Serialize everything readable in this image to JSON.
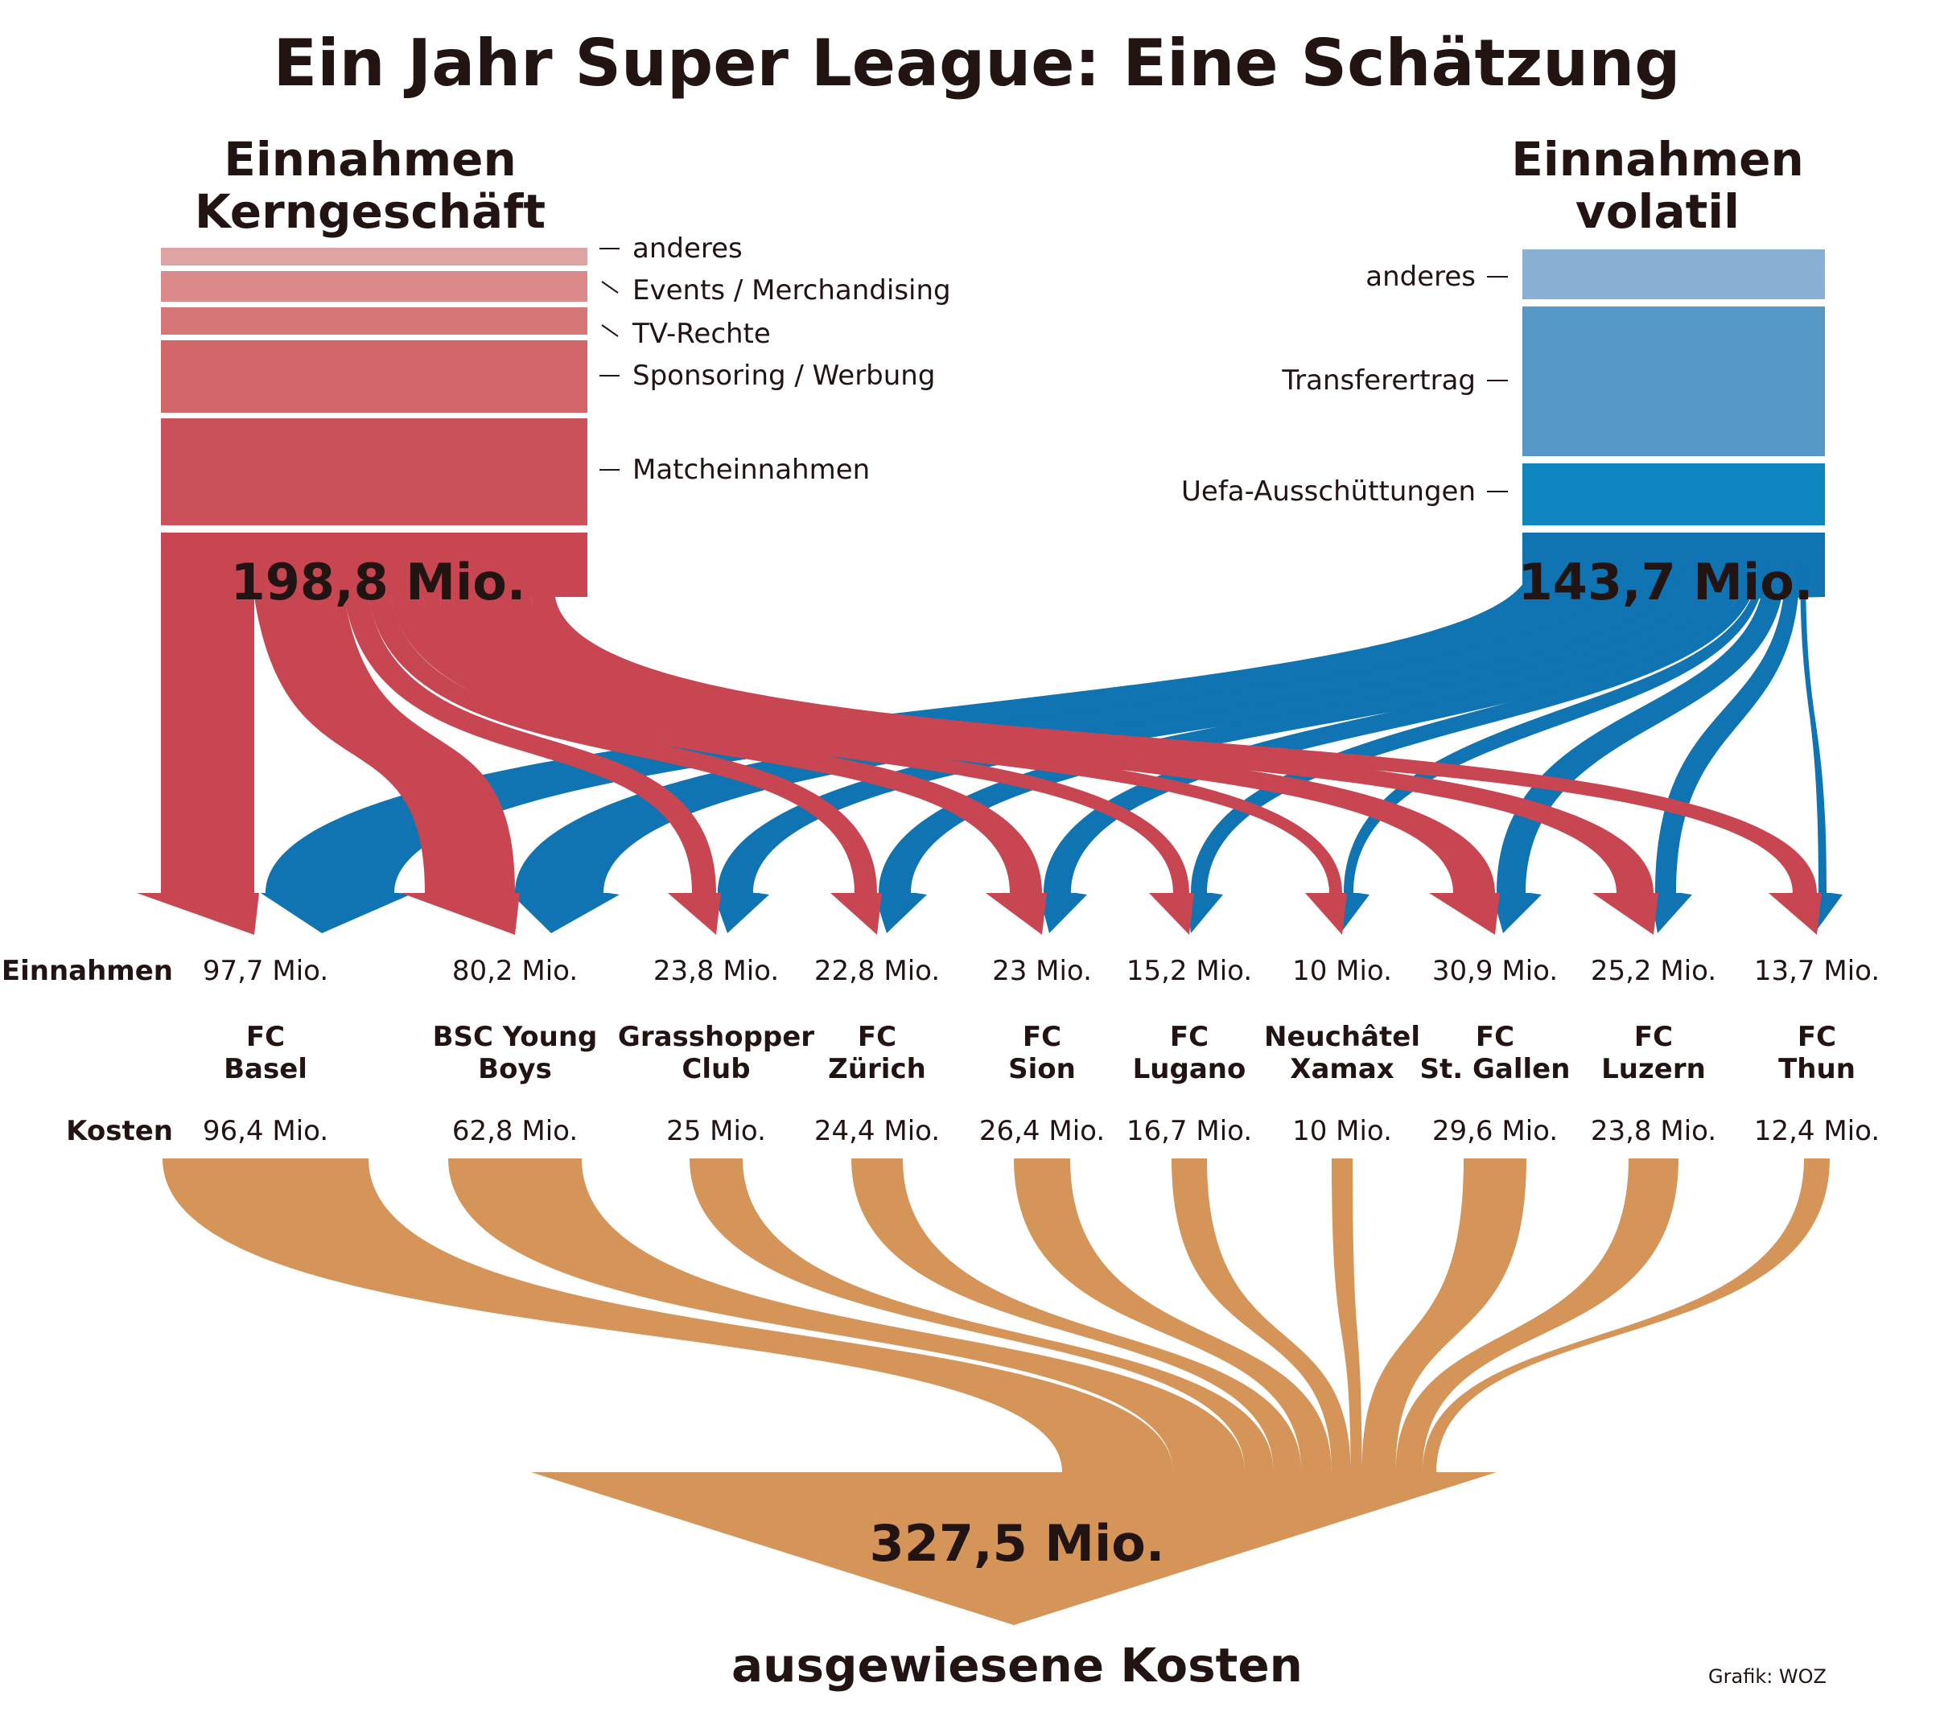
{
  "title": "Ein Jahr Super League: Eine Schätzung",
  "colors": {
    "core": "#c84651",
    "volatile": "#0f74b1",
    "costs": "#d59458",
    "text": "#231414"
  },
  "core_revenue": {
    "heading_line1": "Einnahmen",
    "heading_line2": "Kerngeschäft",
    "total": "198,8 Mio.",
    "categories": [
      {
        "label": "anderes",
        "color": "#dfa3a3"
      },
      {
        "label": "Events / Merchandising",
        "color": "#da8a8a"
      },
      {
        "label": "TV-Rechte",
        "color": "#d67676"
      },
      {
        "label": "Sponsoring / Werbung",
        "color": "#d26668"
      },
      {
        "label": "Matcheinnahmen",
        "color": "#cb525a"
      }
    ]
  },
  "volatile_revenue": {
    "heading_line1": "Einnahmen",
    "heading_line2": "volatil",
    "total": "143,7 Mio.",
    "categories": [
      {
        "label": "anderes",
        "color": "#87b0d3"
      },
      {
        "label": "Transferertrag",
        "color": "#5598c7"
      },
      {
        "label": "Uefa-Ausschüttungen",
        "color": "#0f85bf"
      }
    ]
  },
  "row_labels": {
    "revenue": "Einnahmen",
    "costs": "Kosten"
  },
  "clubs": [
    {
      "name_line1": "FC",
      "name_line2": "Basel",
      "revenue": "97,7 Mio.",
      "costs": "96,4 Mio."
    },
    {
      "name_line1": "BSC Young",
      "name_line2": "Boys",
      "revenue": "80,2 Mio.",
      "costs": "62,8 Mio."
    },
    {
      "name_line1": "Grasshopper",
      "name_line2": "Club",
      "revenue": "23,8 Mio.",
      "costs": "25 Mio."
    },
    {
      "name_line1": "FC",
      "name_line2": "Zürich",
      "revenue": "22,8 Mio.",
      "costs": "24,4 Mio."
    },
    {
      "name_line1": "FC",
      "name_line2": "Sion",
      "revenue": "23 Mio.",
      "costs": "26,4 Mio."
    },
    {
      "name_line1": "FC",
      "name_line2": "Lugano",
      "revenue": "15,2 Mio.",
      "costs": "16,7 Mio."
    },
    {
      "name_line1": "Neuchâtel",
      "name_line2": "Xamax",
      "revenue": "10 Mio.",
      "costs": "10 Mio."
    },
    {
      "name_line1": "FC",
      "name_line2": "St. Gallen",
      "revenue": "30,9 Mio.",
      "costs": "29,6 Mio."
    },
    {
      "name_line1": "FC",
      "name_line2": "Luzern",
      "revenue": "25,2 Mio.",
      "costs": "23,8 Mio."
    },
    {
      "name_line1": "FC",
      "name_line2": "Thun",
      "revenue": "13,7 Mio.",
      "costs": "12,4 Mio."
    }
  ],
  "costs_total": "327,5 Mio.",
  "costs_label": "ausgewiesene Kosten",
  "credit": "Grafik: WOZ"
}
